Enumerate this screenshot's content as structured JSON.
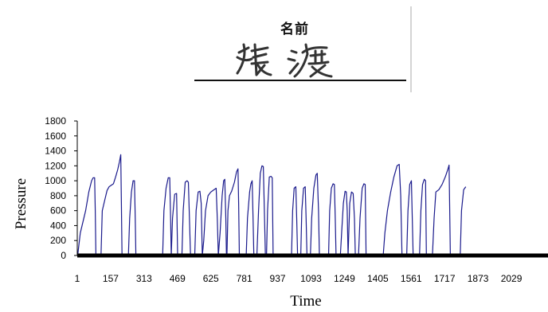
{
  "signature_sheet": {
    "header_label": "名前",
    "signature_text": "猿渡"
  },
  "chart_data": {
    "type": "line",
    "xlabel": "Time",
    "ylabel": "Pressure",
    "ylim": [
      0,
      1800
    ],
    "y_ticks": [
      0,
      200,
      400,
      600,
      800,
      1000,
      1200,
      1400,
      1600,
      1800
    ],
    "x_ticks": [
      1,
      157,
      313,
      469,
      625,
      781,
      937,
      1093,
      1249,
      1405,
      1561,
      1717,
      1873,
      2029
    ],
    "xlim": [
      1,
      2200
    ],
    "grid": false,
    "series_color": "#1a1a8c",
    "strokes": [
      {
        "x": [
          3,
          15,
          40,
          55,
          68,
          75,
          82,
          85,
          88
        ],
        "y": [
          0,
          300,
          600,
          850,
          1000,
          1040,
          1040,
          600,
          0
        ]
      },
      {
        "x": [
          112,
          118,
          130,
          140,
          150,
          160,
          170,
          180,
          190,
          198,
          204,
          207,
          210
        ],
        "y": [
          0,
          600,
          750,
          870,
          920,
          940,
          960,
          1050,
          1150,
          1250,
          1350,
          700,
          0
        ]
      },
      {
        "x": [
          240,
          246,
          254,
          262,
          268,
          272,
          275
        ],
        "y": [
          0,
          500,
          850,
          1000,
          1000,
          500,
          0
        ]
      },
      {
        "x": [
          400,
          406,
          416,
          426,
          433,
          437,
          440
        ],
        "y": [
          0,
          600,
          900,
          1040,
          1040,
          500,
          0
        ]
      },
      {
        "x": [
          440,
          446,
          456,
          465,
          470
        ],
        "y": [
          0,
          500,
          820,
          830,
          0
        ]
      },
      {
        "x": [
          490,
          496,
          505,
          514,
          520,
          526,
          530
        ],
        "y": [
          0,
          600,
          980,
          1000,
          980,
          400,
          0
        ]
      },
      {
        "x": [
          550,
          556,
          566,
          574,
          580,
          585
        ],
        "y": [
          0,
          600,
          850,
          860,
          700,
          0
        ]
      },
      {
        "x": [
          585,
          592,
          600,
          612,
          625,
          640,
          650,
          655,
          660
        ],
        "y": [
          0,
          200,
          600,
          800,
          850,
          880,
          900,
          500,
          0
        ]
      },
      {
        "x": [
          660,
          668,
          678,
          685,
          690,
          695,
          698
        ],
        "y": [
          0,
          300,
          800,
          1000,
          1020,
          500,
          0
        ]
      },
      {
        "x": [
          700,
          705,
          712,
          722,
          735,
          745,
          752,
          755,
          758
        ],
        "y": [
          0,
          600,
          800,
          860,
          980,
          1120,
          1160,
          700,
          0
        ]
      },
      {
        "x": [
          790,
          796,
          806,
          812,
          818,
          822,
          826
        ],
        "y": [
          0,
          500,
          850,
          960,
          1000,
          500,
          0
        ]
      },
      {
        "x": [
          840,
          848,
          856,
          864,
          870,
          875,
          880
        ],
        "y": [
          0,
          600,
          1100,
          1200,
          1190,
          600,
          0
        ]
      },
      {
        "x": [
          885,
          890,
          898,
          906,
          912,
          916
        ],
        "y": [
          0,
          600,
          1050,
          1060,
          1040,
          0
        ]
      },
      {
        "x": [
          1002,
          1007,
          1014,
          1022,
          1026,
          1030
        ],
        "y": [
          0,
          600,
          900,
          920,
          500,
          0
        ]
      },
      {
        "x": [
          1045,
          1050,
          1058,
          1066,
          1070,
          1074
        ],
        "y": [
          0,
          600,
          900,
          920,
          500,
          0
        ]
      },
      {
        "x": [
          1090,
          1096,
          1106,
          1116,
          1122,
          1128,
          1132
        ],
        "y": [
          0,
          500,
          900,
          1080,
          1100,
          600,
          0
        ]
      },
      {
        "x": [
          1175,
          1180,
          1188,
          1196,
          1202,
          1206,
          1210
        ],
        "y": [
          0,
          600,
          900,
          960,
          950,
          500,
          0
        ]
      },
      {
        "x": [
          1230,
          1236,
          1244,
          1252,
          1258,
          1262,
          1266
        ],
        "y": [
          0,
          300,
          700,
          860,
          850,
          600,
          0
        ]
      },
      {
        "x": [
          1266,
          1274,
          1282,
          1290,
          1296,
          1300
        ],
        "y": [
          0,
          700,
          850,
          830,
          500,
          0
        ]
      },
      {
        "x": [
          1315,
          1322,
          1332,
          1340,
          1346,
          1350
        ],
        "y": [
          0,
          500,
          900,
          960,
          950,
          0
        ]
      },
      {
        "x": [
          1430,
          1438,
          1450,
          1465,
          1480,
          1495,
          1505,
          1512,
          1518
        ],
        "y": [
          0,
          300,
          600,
          850,
          1050,
          1200,
          1220,
          800,
          0
        ]
      },
      {
        "x": [
          1540,
          1546,
          1554,
          1562,
          1566,
          1570
        ],
        "y": [
          0,
          600,
          950,
          1000,
          500,
          0
        ]
      },
      {
        "x": [
          1600,
          1606,
          1614,
          1622,
          1628,
          1632
        ],
        "y": [
          0,
          600,
          950,
          1020,
          1000,
          0
        ]
      },
      {
        "x": [
          1660,
          1668,
          1676,
          1690,
          1705,
          1720,
          1732,
          1738,
          1744
        ],
        "y": [
          0,
          500,
          850,
          880,
          950,
          1050,
          1150,
          1210,
          0
        ]
      },
      {
        "x": [
          1790,
          1796,
          1806,
          1816
        ],
        "y": [
          0,
          600,
          880,
          920
        ]
      }
    ]
  }
}
